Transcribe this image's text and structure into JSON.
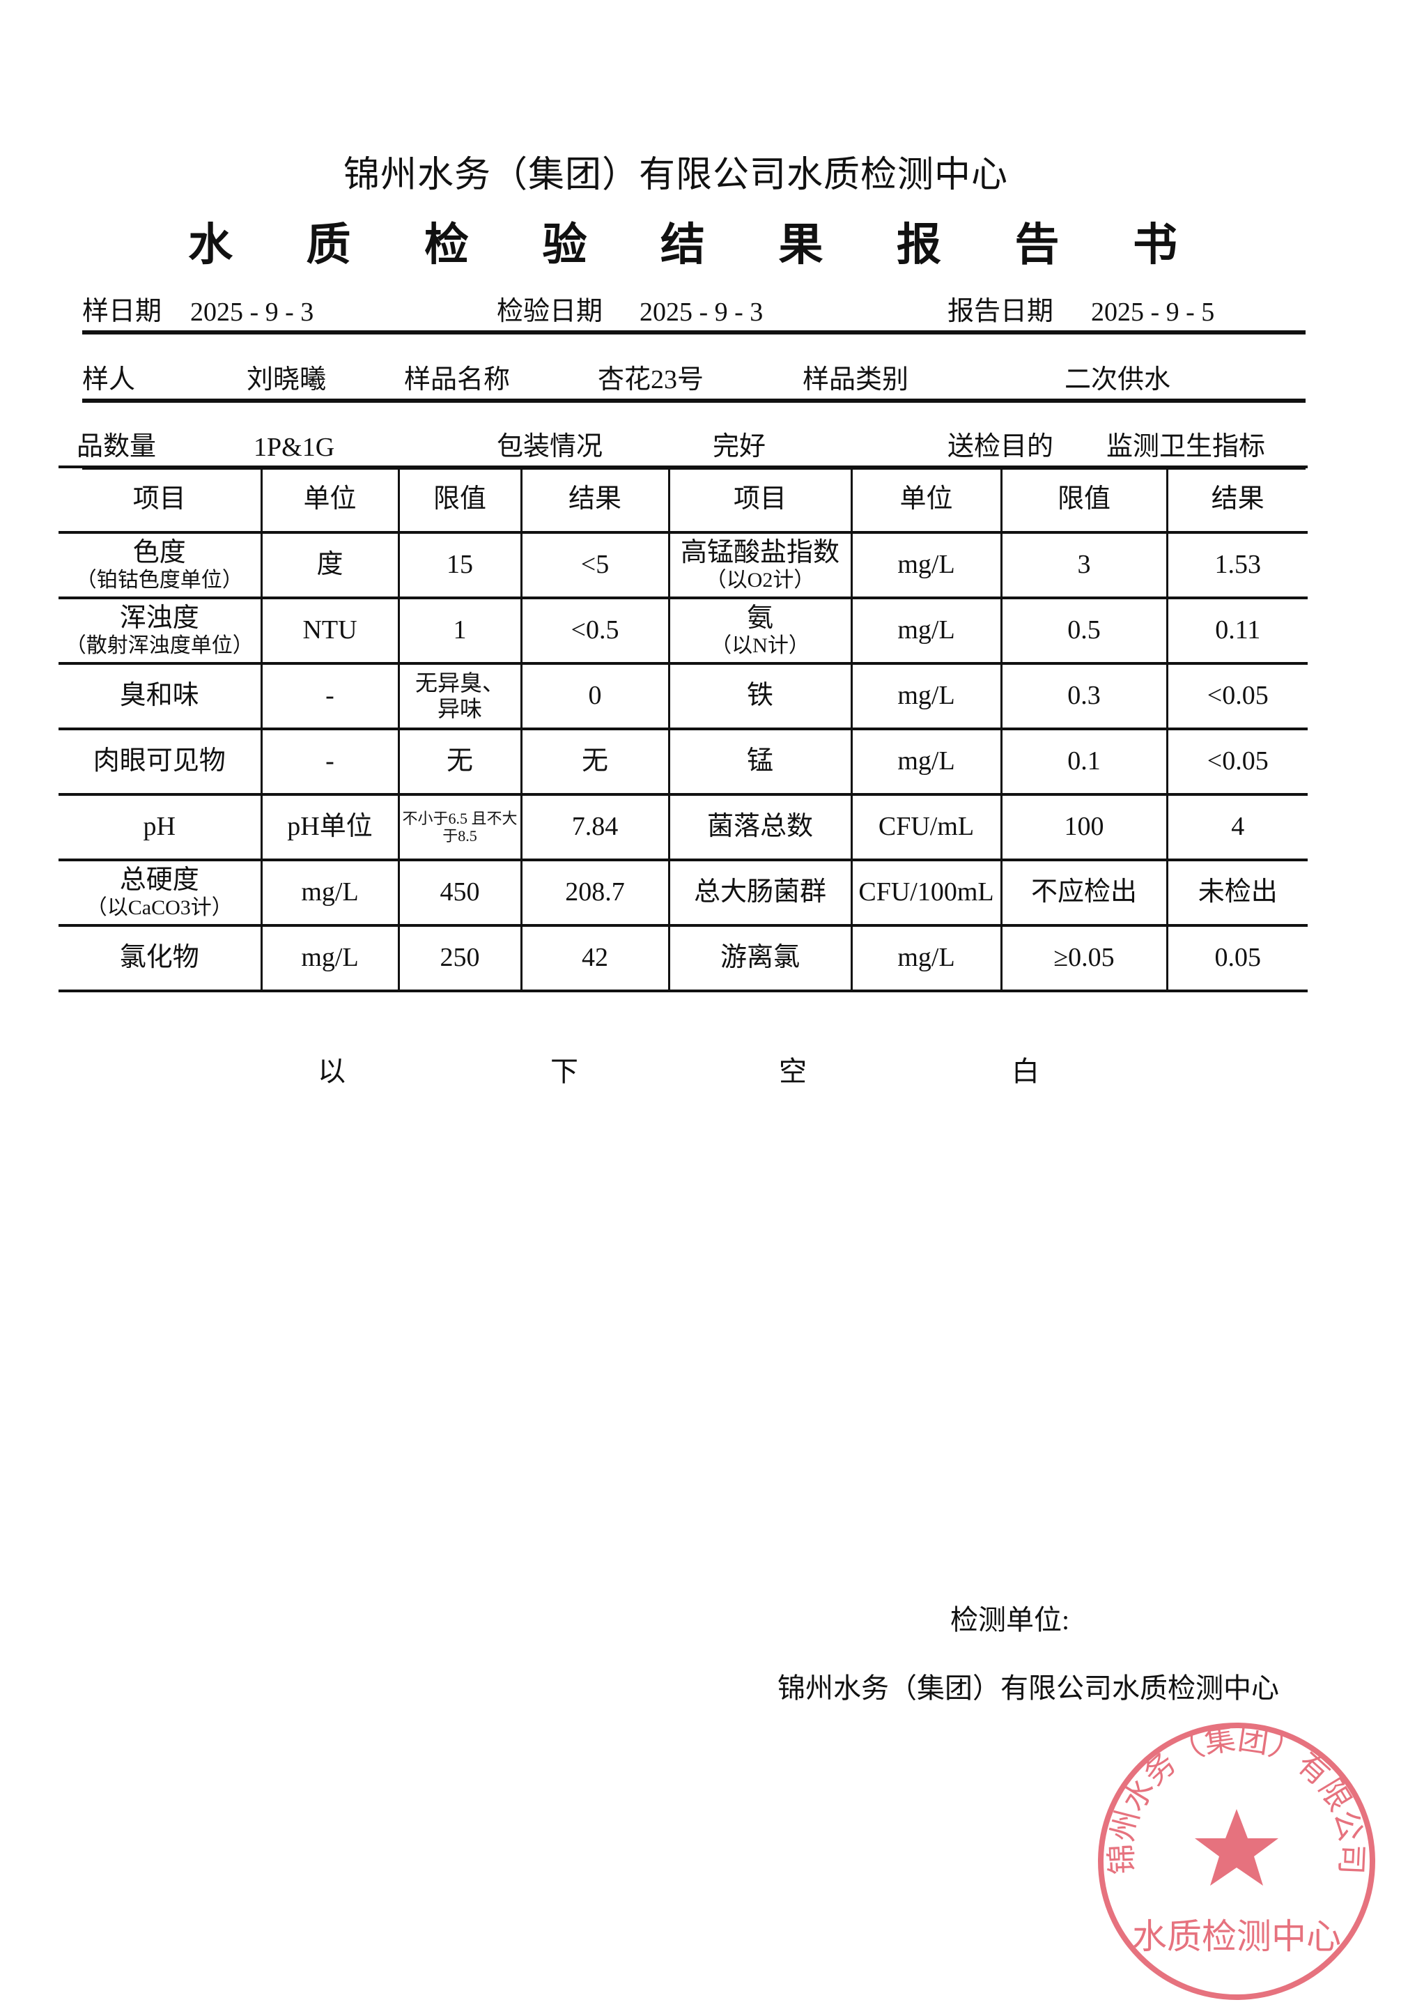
{
  "header": {
    "org_title": "锦州水务（集团）有限公司水质检测中心",
    "report_title_chars": [
      "水",
      "质",
      "检",
      "验",
      "结",
      "果",
      "报",
      "告",
      "书"
    ]
  },
  "info": {
    "sampling_date_label": "样日期",
    "sampling_date": "2025 - 9 - 3",
    "test_date_label": "检验日期",
    "test_date": "2025 - 9 - 3",
    "report_date_label": "报告日期",
    "report_date": "2025 - 9 - 5",
    "sampler_label": "样人",
    "sampler": "刘晓曦",
    "sample_name_label": "样品名称",
    "sample_name": "杏花23号",
    "sample_type_label": "样品类别",
    "sample_type": "二次供水",
    "quantity_label": "品数量",
    "quantity": "1P&1G",
    "package_label": "包装情况",
    "package": "完好",
    "purpose_label": "送检目的",
    "purpose": "监测卫生指标"
  },
  "table": {
    "headers": [
      "项目",
      "单位",
      "限值",
      "结果",
      "项目",
      "单位",
      "限值",
      "结果"
    ],
    "rows": [
      [
        {
          "main": "色度",
          "sub": "（铂钴色度单位）"
        },
        "度",
        "15",
        "<5",
        {
          "main": "高锰酸盐指数",
          "sub": "（以O2计）"
        },
        "mg/L",
        "3",
        "1.53"
      ],
      [
        {
          "main": "浑浊度",
          "sub": "（散射浑浊度单位）"
        },
        "NTU",
        "1",
        "<0.5",
        {
          "main": "氨",
          "sub": "（以N计）"
        },
        "mg/L",
        "0.5",
        "0.11"
      ],
      [
        "臭和味",
        "-",
        "无异臭、异味",
        "0",
        "铁",
        "mg/L",
        "0.3",
        "<0.05"
      ],
      [
        "肉眼可见物",
        "-",
        "无",
        "无",
        "锰",
        "mg/L",
        "0.1",
        "<0.05"
      ],
      [
        "pH",
        "pH单位",
        "不小于6.5 且不大于8.5",
        "7.84",
        "菌落总数",
        "CFU/mL",
        "100",
        "4"
      ],
      [
        {
          "main": "总硬度",
          "sub": "（以CaCO3计）"
        },
        "mg/L",
        "450",
        "208.7",
        "总大肠菌群",
        "CFU/100mL",
        "不应检出",
        "未检出"
      ],
      [
        "氯化物",
        "mg/L",
        "250",
        "42",
        "游离氯",
        "mg/L",
        "≥0.05",
        "0.05"
      ]
    ]
  },
  "footer": {
    "blank_chars": [
      "以",
      "下",
      "空",
      "白"
    ],
    "unit_label": "检测单位:",
    "unit_name": "锦州水务（集团）有限公司水质检测中心"
  },
  "seal": {
    "text_arc": "锦州水务（集团）有限公司",
    "text_bottom": "水质检测中心",
    "color": "#e0505f"
  }
}
